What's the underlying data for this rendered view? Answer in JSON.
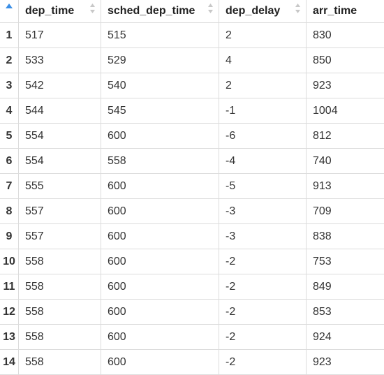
{
  "table": {
    "columns": [
      "dep_time",
      "sched_dep_time",
      "dep_delay",
      "arr_time"
    ],
    "rows": [
      {
        "n": "1",
        "cells": [
          "517",
          "515",
          "2",
          "830"
        ]
      },
      {
        "n": "2",
        "cells": [
          "533",
          "529",
          "4",
          "850"
        ]
      },
      {
        "n": "3",
        "cells": [
          "542",
          "540",
          "2",
          "923"
        ]
      },
      {
        "n": "4",
        "cells": [
          "544",
          "545",
          "-1",
          "1004"
        ]
      },
      {
        "n": "5",
        "cells": [
          "554",
          "600",
          "-6",
          "812"
        ]
      },
      {
        "n": "6",
        "cells": [
          "554",
          "558",
          "-4",
          "740"
        ]
      },
      {
        "n": "7",
        "cells": [
          "555",
          "600",
          "-5",
          "913"
        ]
      },
      {
        "n": "8",
        "cells": [
          "557",
          "600",
          "-3",
          "709"
        ]
      },
      {
        "n": "9",
        "cells": [
          "557",
          "600",
          "-3",
          "838"
        ]
      },
      {
        "n": "10",
        "cells": [
          "558",
          "600",
          "-2",
          "753"
        ]
      },
      {
        "n": "11",
        "cells": [
          "558",
          "600",
          "-2",
          "849"
        ]
      },
      {
        "n": "12",
        "cells": [
          "558",
          "600",
          "-2",
          "853"
        ]
      },
      {
        "n": "13",
        "cells": [
          "558",
          "600",
          "-2",
          "924"
        ]
      },
      {
        "n": "14",
        "cells": [
          "558",
          "600",
          "-2",
          "923"
        ]
      }
    ]
  },
  "colors": {
    "sort_active": "#3a8ee6",
    "sort_inactive": "#c8c8c8",
    "grid_line": "#dcdcdc"
  }
}
